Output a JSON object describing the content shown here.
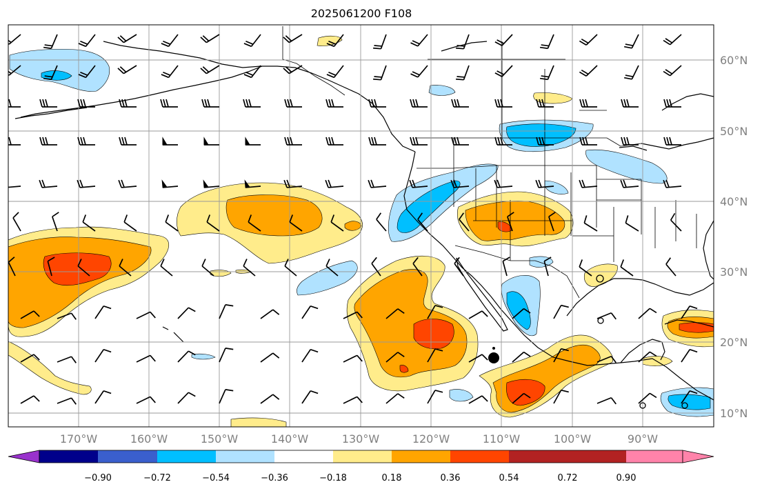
{
  "title": "2025061200 F108",
  "lon_ticks": [
    {
      "label": "170°W",
      "value": -170
    },
    {
      "label": "160°W",
      "value": -160
    },
    {
      "label": "150°W",
      "value": -150
    },
    {
      "label": "140°W",
      "value": -140
    },
    {
      "label": "130°W",
      "value": -130
    },
    {
      "label": "120°W",
      "value": -120
    },
    {
      "label": "110°W",
      "value": -110
    },
    {
      "label": "100°W",
      "value": -100
    },
    {
      "label": "90°W",
      "value": -90
    }
  ],
  "lat_ticks": [
    {
      "label": "60°N",
      "value": 60
    },
    {
      "label": "50°N",
      "value": 50
    },
    {
      "label": "40°N",
      "value": 40
    },
    {
      "label": "30°N",
      "value": 30
    },
    {
      "label": "20°N",
      "value": 20
    },
    {
      "label": "10°N",
      "value": 10
    }
  ],
  "colorbar": {
    "ticks": [
      "−0.90",
      "−0.72",
      "−0.54",
      "−0.36",
      "−0.18",
      "0.18",
      "0.36",
      "0.54",
      "0.72",
      "0.90"
    ],
    "colors": [
      "#9932cc",
      "#00008b",
      "#3a5fcd",
      "#00bfff",
      "#b0e2ff",
      "#ffffff",
      "#ffec8b",
      "#ffa500",
      "#ff4500",
      "#b22222",
      "#ff83aa"
    ]
  },
  "palette": {
    "neg1": "#b0e2ff",
    "neg2": "#00bfff",
    "pos1": "#ffec8b",
    "pos2": "#ffa500",
    "pos3": "#ff4500"
  }
}
